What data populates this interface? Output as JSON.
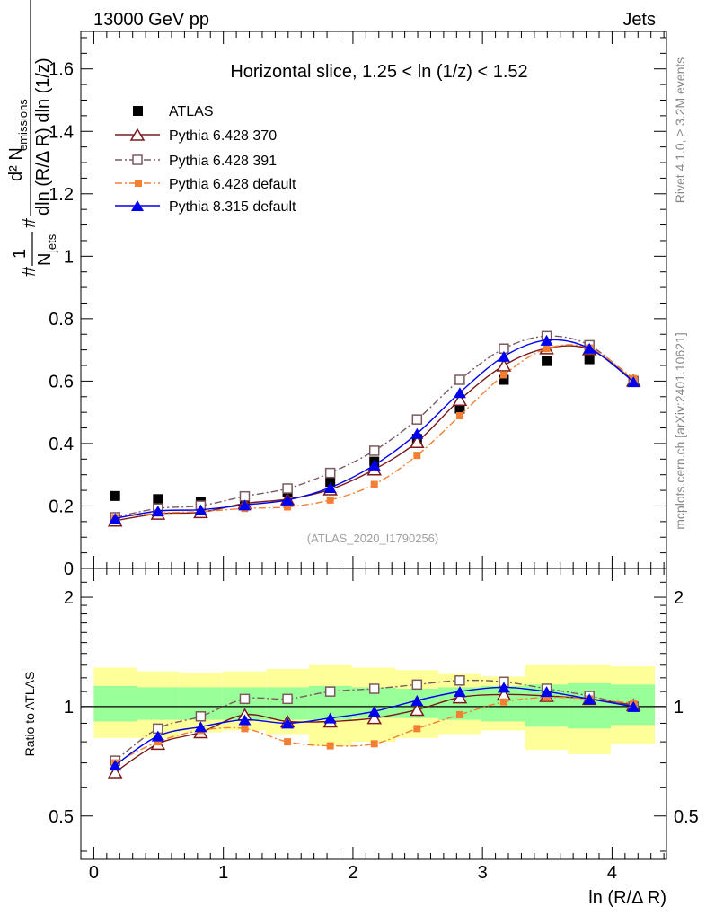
{
  "header": {
    "left": "13000 GeV pp",
    "right": "Jets"
  },
  "side_text": {
    "events": "Rivet 4.1.0, ≥ 3.2M events",
    "site": "mcplots.cern.ch [arXiv:2401.10621]"
  },
  "chart_data": [
    {
      "type": "scatter",
      "title": "Horizontal slice, 1.25 < ln (1/z) < 1.52",
      "watermark": "(ATLAS_2020_I1790256)",
      "ylabel_parts": {
        "hash": "#",
        "frac_num": "1",
        "n_jets": "N",
        "n_jets_sub": "jets",
        "hash2": "#",
        "d2": "d² N",
        "emissions_sub": "emissions",
        "denominator": "dln (R/Δ R) dln (1/z)"
      },
      "xlim": [
        -0.1,
        4.42
      ],
      "ylim": [
        0,
        1.72
      ],
      "yticks": [
        0,
        0.2,
        0.4,
        0.6,
        0.8,
        1,
        1.2,
        1.4,
        1.6
      ],
      "ytick_labels": [
        "0",
        "0.2",
        "0.4",
        "0.6",
        "0.8",
        "1",
        "1.2",
        "1.4",
        "1.6"
      ],
      "x": [
        0.165,
        0.495,
        0.825,
        1.165,
        1.495,
        1.825,
        2.165,
        2.495,
        2.825,
        3.165,
        3.495,
        3.825,
        4.165
      ],
      "series": [
        {
          "name": "ATLAS",
          "color": "#000000",
          "marker": "filled-square",
          "line": "none",
          "values": [
            0.232,
            0.222,
            0.213,
            0.22,
            0.245,
            0.277,
            0.342,
            0.415,
            0.512,
            0.604,
            0.664,
            0.67,
            0.598
          ]
        },
        {
          "name": "Pythia 6.428 370",
          "color": "#7a1a1a",
          "marker": "open-triangle",
          "line": "solid",
          "values": [
            0.153,
            0.175,
            0.18,
            0.208,
            0.222,
            0.253,
            0.317,
            0.405,
            0.54,
            0.65,
            0.705,
            0.702,
            0.602
          ]
        },
        {
          "name": "Pythia 6.428 391",
          "color": "#7a5a5e",
          "marker": "open-square",
          "line": "dashdot",
          "values": [
            0.164,
            0.192,
            0.201,
            0.231,
            0.256,
            0.306,
            0.377,
            0.477,
            0.604,
            0.704,
            0.744,
            0.715,
            0.6
          ]
        },
        {
          "name": "Pythia 6.428 default",
          "color": "#f47f33",
          "marker": "filled-small-square",
          "line": "dashdot",
          "values": [
            0.163,
            0.177,
            0.182,
            0.192,
            0.197,
            0.219,
            0.269,
            0.362,
            0.489,
            0.62,
            0.704,
            0.706,
            0.608
          ]
        },
        {
          "name": "Pythia 8.315 default",
          "color": "#0000ee",
          "marker": "filled-triangle",
          "line": "solid",
          "values": [
            0.16,
            0.184,
            0.188,
            0.203,
            0.219,
            0.259,
            0.331,
            0.432,
            0.563,
            0.679,
            0.731,
            0.705,
            0.598
          ]
        }
      ]
    },
    {
      "type": "scatter",
      "ylabel": "Ratio to ATLAS",
      "xlabel": "ln (R/Δ R)",
      "xlim": [
        -0.1,
        4.42
      ],
      "ylim": [
        0.38,
        2.4
      ],
      "log_y": true,
      "yticks": [
        0.5,
        1,
        2
      ],
      "ytick_labels": [
        "0.5",
        "1",
        "2"
      ],
      "xticks": [
        0,
        1,
        2,
        3,
        4
      ],
      "xtick_labels": [
        "0",
        "1",
        "2",
        "3",
        "4"
      ],
      "x": [
        0.165,
        0.495,
        0.825,
        1.165,
        1.495,
        1.825,
        2.165,
        2.495,
        2.825,
        3.165,
        3.495,
        3.825,
        4.165
      ],
      "bin_edges": [
        0,
        0.33,
        0.66,
        0.99,
        1.33,
        1.66,
        1.99,
        2.33,
        2.66,
        2.99,
        3.33,
        3.66,
        3.99,
        4.33
      ],
      "band_yellow": {
        "color": "#ffff99",
        "low": [
          0.82,
          0.82,
          0.85,
          0.86,
          0.84,
          0.78,
          0.8,
          0.82,
          0.84,
          0.86,
          0.76,
          0.74,
          0.79
        ],
        "high": [
          1.28,
          1.25,
          1.24,
          1.25,
          1.27,
          1.3,
          1.28,
          1.26,
          1.23,
          1.21,
          1.3,
          1.3,
          1.29
        ]
      },
      "band_green": {
        "color": "#99ff99",
        "low": [
          0.91,
          0.92,
          0.92,
          0.92,
          0.92,
          0.92,
          0.93,
          0.93,
          0.92,
          0.91,
          0.88,
          0.87,
          0.89
        ],
        "high": [
          1.14,
          1.13,
          1.13,
          1.13,
          1.13,
          1.14,
          1.13,
          1.12,
          1.13,
          1.14,
          1.15,
          1.16,
          1.15
        ]
      },
      "series": [
        {
          "name": "Pythia 6.428 370",
          "color": "#7a1a1a",
          "marker": "open-triangle",
          "line": "solid",
          "values": [
            0.66,
            0.79,
            0.85,
            0.95,
            0.91,
            0.91,
            0.93,
            0.98,
            1.06,
            1.08,
            1.07,
            1.05,
            1.01
          ]
        },
        {
          "name": "Pythia 6.428 391",
          "color": "#7a5a5e",
          "marker": "open-square",
          "line": "dashdot",
          "values": [
            0.71,
            0.87,
            0.94,
            1.05,
            1.05,
            1.1,
            1.12,
            1.15,
            1.18,
            1.17,
            1.12,
            1.07,
            1.0
          ]
        },
        {
          "name": "Pythia 6.428 default",
          "color": "#f47f33",
          "marker": "filled-small-square",
          "line": "dashdot",
          "values": [
            0.7,
            0.8,
            0.86,
            0.87,
            0.8,
            0.78,
            0.79,
            0.87,
            0.95,
            1.03,
            1.06,
            1.05,
            1.02
          ]
        },
        {
          "name": "Pythia 8.315 default",
          "color": "#0000ee",
          "marker": "filled-triangle",
          "line": "solid",
          "values": [
            0.69,
            0.83,
            0.88,
            0.92,
            0.9,
            0.93,
            0.97,
            1.04,
            1.1,
            1.13,
            1.1,
            1.05,
            1.0
          ]
        }
      ]
    }
  ]
}
